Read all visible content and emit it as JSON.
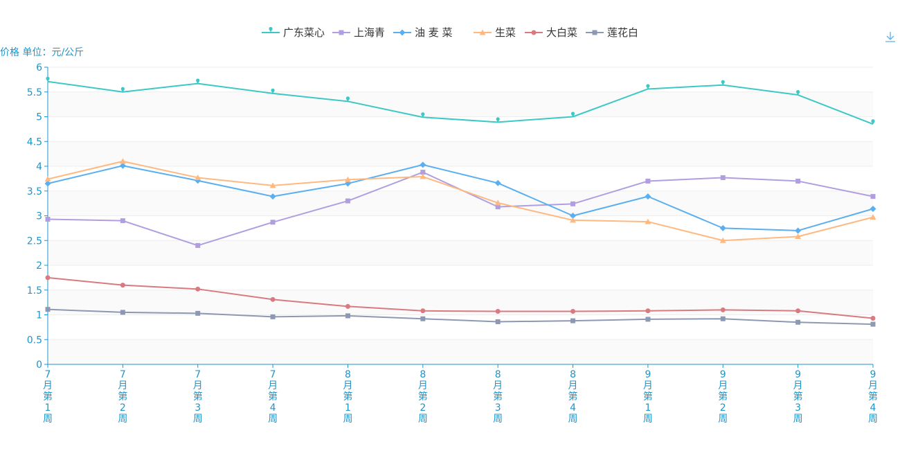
{
  "chart_data": {
    "type": "line",
    "ylabel": "价格 单位：元/公斤",
    "ylim": [
      0,
      6
    ],
    "yticks": [
      "0",
      "0.5",
      "1",
      "1.5",
      "2",
      "2.5",
      "3",
      "3.5",
      "4",
      "4.5",
      "5",
      "5.5",
      "6"
    ],
    "categories": [
      "7月第1周",
      "7月第2周",
      "7月第3周",
      "7月第4周",
      "8月第1周",
      "8月第2周",
      "8月第3周",
      "8月第4周",
      "9月第1周",
      "9月第2周",
      "9月第3周",
      "9月第4周"
    ],
    "legend_position": "top-center",
    "grid": "horizontal alternating bands",
    "series": [
      {
        "name": "广东菜心",
        "color": "#3cc8c6",
        "symbol": "pin",
        "values": [
          5.71,
          5.5,
          5.67,
          5.47,
          5.31,
          4.99,
          4.89,
          5.0,
          5.56,
          5.64,
          5.44,
          4.85
        ]
      },
      {
        "name": "上海青",
        "color": "#b09ee0",
        "symbol": "square",
        "values": [
          2.93,
          2.9,
          2.4,
          2.87,
          3.3,
          3.88,
          3.18,
          3.24,
          3.7,
          3.77,
          3.7,
          3.39
        ]
      },
      {
        "name": "油 麦 菜",
        "color": "#5aaff0",
        "symbol": "diamond",
        "values": [
          3.65,
          4.01,
          3.71,
          3.39,
          3.65,
          4.03,
          3.66,
          3.0,
          3.39,
          2.75,
          2.7,
          3.14
        ]
      },
      {
        "name": "生菜",
        "color": "#ffb980",
        "symbol": "triangle",
        "values": [
          3.74,
          4.1,
          3.77,
          3.61,
          3.73,
          3.79,
          3.26,
          2.91,
          2.88,
          2.5,
          2.58,
          2.97
        ]
      },
      {
        "name": "大白菜",
        "color": "#d87a80",
        "symbol": "circle",
        "values": [
          1.75,
          1.6,
          1.52,
          1.31,
          1.17,
          1.08,
          1.07,
          1.07,
          1.08,
          1.1,
          1.08,
          0.93
        ]
      },
      {
        "name": "莲花白",
        "color": "#8d98b3",
        "symbol": "square",
        "values": [
          1.11,
          1.05,
          1.03,
          0.96,
          0.98,
          0.92,
          0.86,
          0.88,
          0.91,
          0.92,
          0.85,
          0.81
        ]
      }
    ]
  },
  "toolbar": {
    "download_icon": "download-icon",
    "color": "#5ab1ef"
  },
  "axis_color": "#1e95c8"
}
